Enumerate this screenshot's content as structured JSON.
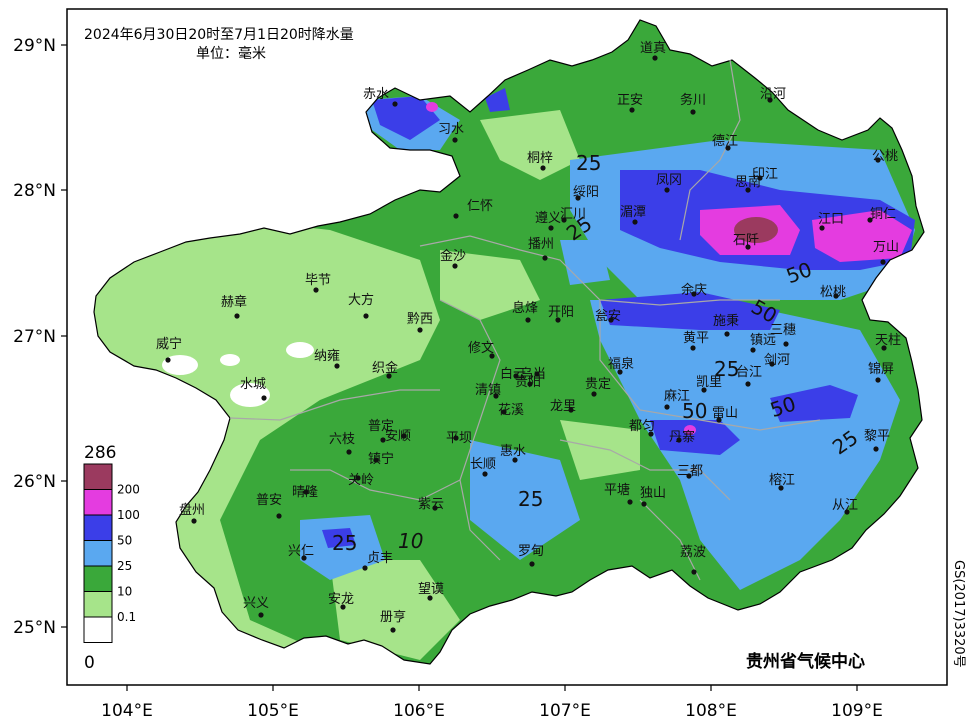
{
  "title": {
    "line1": "2024年6月30日20时至7月1日20时降水量",
    "line2": "单位：毫米"
  },
  "axes": {
    "lat_ticks": [
      "29°N",
      "28°N",
      "27°N",
      "26°N",
      "25°N"
    ],
    "lon_ticks": [
      "104°E",
      "105°E",
      "106°E",
      "107°E",
      "108°E",
      "109°E"
    ]
  },
  "legend": {
    "top": "286",
    "bottom": "0",
    "bins": [
      {
        "label": "200",
        "color": "#9b3a5f"
      },
      {
        "label": "100",
        "color": "#e43ce0"
      },
      {
        "label": "50",
        "color": "#3b3ee8"
      },
      {
        "label": "25",
        "color": "#5aa8f0"
      },
      {
        "label": "10",
        "color": "#3aa83a"
      },
      {
        "label": "0.1",
        "color": "#a6e48a"
      },
      {
        "label": "",
        "color": "#ffffff"
      }
    ]
  },
  "cities": [
    "赤水",
    "习水",
    "道真",
    "正安",
    "务川",
    "沿河",
    "桐梓",
    "德江",
    "印江",
    "公桃",
    "绥阳",
    "凤冈",
    "思南",
    "湄潭",
    "仁怀",
    "遵义",
    "汇川",
    "江口",
    "铜仁",
    "石阡",
    "万山",
    "播州",
    "金沙",
    "毕节",
    "大方",
    "黔西",
    "赫章",
    "余庆",
    "松桃",
    "息烽",
    "开阳",
    "瓮安",
    "施秉",
    "三穗",
    "天柱",
    "威宁",
    "纳雍",
    "修文",
    "织金",
    "黄平",
    "镇远",
    "锦屏",
    "白云",
    "乌当",
    "福泉",
    "台江",
    "剑河",
    "水城",
    "清镇",
    "贵阳",
    "龙里",
    "贵定",
    "凯里",
    "平坝",
    "花溪",
    "麻江",
    "雷山",
    "都匀",
    "六枝",
    "普定",
    "安顺",
    "丹寨",
    "黎平",
    "长顺",
    "惠水",
    "镇宁",
    "三都",
    "榕江",
    "关岭",
    "盘州",
    "晴隆",
    "紫云",
    "平塘",
    "独山",
    "从江",
    "普安",
    "兴仁",
    "贞丰",
    "罗甸",
    "荔波",
    "望谟",
    "兴义",
    "安龙",
    "册亨"
  ],
  "contours": [
    "25",
    "25",
    "50",
    "50",
    "25",
    "50",
    "50",
    "25",
    "25",
    "25",
    "10"
  ],
  "credit": "贵州省气候中心",
  "approval": "GS(2017)3320号",
  "chart_data": {
    "type": "heatmap",
    "title": "2024年6月30日20时至7月1日20时降水量",
    "unit": "毫米",
    "xlim": [
      103.6,
      109.6
    ],
    "ylim": [
      24.6,
      29.2
    ],
    "color_bins": [
      0,
      0.1,
      10,
      25,
      50,
      100,
      200,
      286
    ]
  }
}
